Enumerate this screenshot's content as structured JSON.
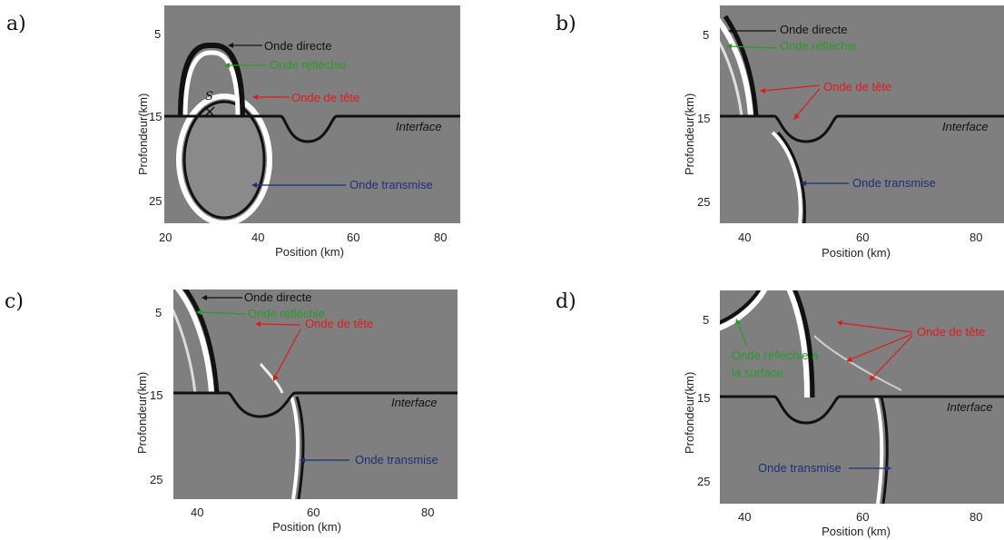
{
  "panels": {
    "a": {
      "letter": "a)",
      "ylabel": "Profondeur(km)",
      "xlabel": "Position (km)",
      "yticks": [
        "5",
        "15",
        "25"
      ],
      "xticks": [
        "20",
        "40",
        "60",
        "80"
      ],
      "labels": {
        "directe": "Onde directe",
        "reflechie": "Onde réfléchie",
        "tete": "Onde de tête",
        "interface": "Interface",
        "transmise": "Onde transmise",
        "source": "S"
      }
    },
    "b": {
      "letter": "b)",
      "ylabel": "Profondeur(km)",
      "xlabel": "Position (km)",
      "yticks": [
        "5",
        "15",
        "25"
      ],
      "xticks": [
        "40",
        "60",
        "80"
      ],
      "labels": {
        "directe": "Onde directe",
        "reflechie": "Onde réfléchie",
        "tete": "Onde de tête",
        "interface": "Interface",
        "transmise": "Onde transmise"
      }
    },
    "c": {
      "letter": "c)",
      "ylabel": "Profondeur(km)",
      "xlabel": "Position (km)",
      "yticks": [
        "5",
        "15",
        "25"
      ],
      "xticks": [
        "40",
        "60",
        "80"
      ],
      "labels": {
        "directe": "Onde directe",
        "reflechie": "Onde réfléchie",
        "tete": "Onde de tête",
        "interface": "Interface",
        "transmise": "Onde transmise"
      }
    },
    "d": {
      "letter": "d)",
      "ylabel": "Profondeur(km)",
      "xlabel": "Position (km)",
      "yticks": [
        "5",
        "15",
        "25"
      ],
      "xticks": [
        "40",
        "60",
        "80"
      ],
      "labels": {
        "reflechie_line1": "Onde réfléchie à",
        "reflechie_line2": "la surface",
        "tete": "Onde de tête",
        "interface": "Interface",
        "transmise": "Onde transmise"
      }
    }
  },
  "colors": {
    "background": "#7f7f7f",
    "black_label": "#111111",
    "green_label": "#2a9a2a",
    "red_label": "#e01b1b",
    "blue_label": "#1f2f7a"
  }
}
